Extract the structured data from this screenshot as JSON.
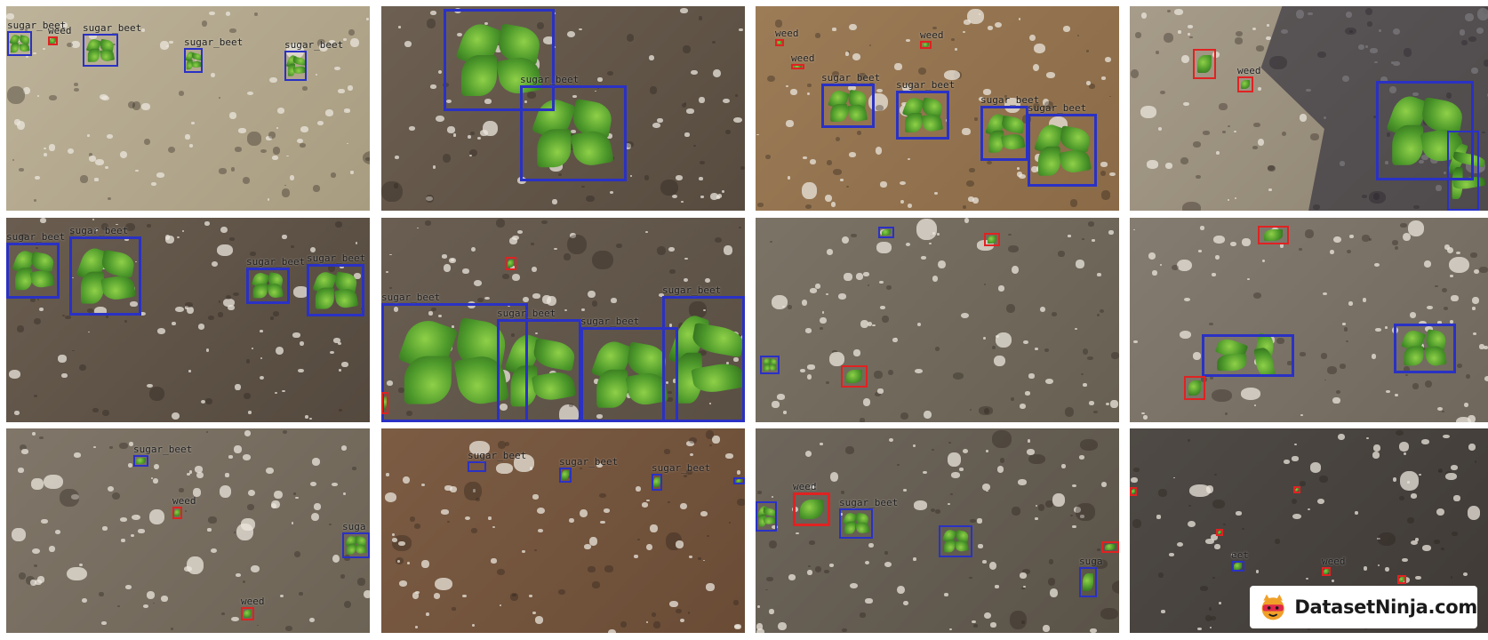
{
  "class_labels": {
    "sugar": "sugar_beet",
    "weed": "weed"
  },
  "colors": {
    "sugar_beet": "#2a31c4",
    "weed": "#e02222"
  },
  "logo": {
    "text": "DatasetNinja.com",
    "icon": "ninja-mascot-icon"
  },
  "tiles": [
    {
      "name": "tile-1",
      "soil": [
        "#bdb39a",
        "#a89c80"
      ],
      "plants": 4,
      "boxes": [
        {
          "cls": "sugar",
          "label": "sugar_beet"
        },
        {
          "cls": "weed",
          "label": "weed"
        },
        {
          "cls": "sugar",
          "label": "sugar_beet"
        },
        {
          "cls": "sugar",
          "label": "sugar_beet"
        },
        {
          "cls": "sugar",
          "label": "sugar_beet"
        }
      ]
    },
    {
      "name": "tile-2",
      "soil": [
        "#6d6052",
        "#574b3f"
      ],
      "plants": 2,
      "boxes": [
        {
          "cls": "sugar",
          "label": ""
        },
        {
          "cls": "sugar",
          "label": "sugar_beet"
        }
      ]
    },
    {
      "name": "tile-3",
      "soil": [
        "#9c7c57",
        "#8a6a47"
      ],
      "plants": 4,
      "boxes": [
        {
          "cls": "weed",
          "label": "weed"
        },
        {
          "cls": "weed",
          "label": "weed"
        },
        {
          "cls": "weed",
          "label": "weed"
        },
        {
          "cls": "sugar",
          "label": "sugar_beet"
        },
        {
          "cls": "sugar",
          "label": "sugar_beet"
        },
        {
          "cls": "sugar",
          "label": "sugar_beet"
        },
        {
          "cls": "sugar",
          "label": "sugar_beet"
        }
      ]
    },
    {
      "name": "tile-4",
      "soil": [
        "#a79c8a",
        "#8c8270"
      ],
      "plants": 2,
      "boxes": [
        {
          "cls": "weed",
          "label": ""
        },
        {
          "cls": "weed",
          "label": "weed"
        },
        {
          "cls": "sugar",
          "label": ""
        },
        {
          "cls": "sugar",
          "label": ""
        }
      ]
    },
    {
      "name": "tile-5",
      "soil": [
        "#6a5d50",
        "#54493e"
      ],
      "plants": 4,
      "boxes": [
        {
          "cls": "sugar",
          "label": "sugar_beet"
        },
        {
          "cls": "sugar",
          "label": "sugar_beet"
        },
        {
          "cls": "sugar",
          "label": "sugar_beet"
        },
        {
          "cls": "sugar",
          "label": "sugar_beet"
        }
      ]
    },
    {
      "name": "tile-6",
      "soil": [
        "#6a5e52",
        "#5a4f43"
      ],
      "plants": 4,
      "boxes": [
        {
          "cls": "weed",
          "label": ""
        },
        {
          "cls": "sugar",
          "label": "sugar_beet"
        },
        {
          "cls": "sugar",
          "label": "sugar_beet"
        },
        {
          "cls": "sugar",
          "label": "sugar_beet"
        },
        {
          "cls": "sugar",
          "label": "sugar_beet"
        },
        {
          "cls": "weed",
          "label": ""
        }
      ]
    },
    {
      "name": "tile-7",
      "soil": [
        "#7b7366",
        "#676052"
      ],
      "plants": 3,
      "boxes": [
        {
          "cls": "sugar",
          "label": ""
        },
        {
          "cls": "weed",
          "label": ""
        },
        {
          "cls": "sugar",
          "label": ""
        },
        {
          "cls": "weed",
          "label": ""
        }
      ]
    },
    {
      "name": "tile-8",
      "soil": [
        "#847c70",
        "#6f675b"
      ],
      "plants": 3,
      "boxes": [
        {
          "cls": "weed",
          "label": ""
        },
        {
          "cls": "sugar",
          "label": ""
        },
        {
          "cls": "sugar",
          "label": ""
        },
        {
          "cls": "weed",
          "label": ""
        }
      ]
    },
    {
      "name": "tile-9",
      "soil": [
        "#807669",
        "#6c6355"
      ],
      "plants": 1,
      "boxes": [
        {
          "cls": "sugar",
          "label": "sugar_beet"
        },
        {
          "cls": "weed",
          "label": "weed"
        },
        {
          "cls": "sugar",
          "label": "suga"
        },
        {
          "cls": "weed",
          "label": "weed"
        }
      ]
    },
    {
      "name": "tile-10",
      "soil": [
        "#7c5c43",
        "#6a4c36"
      ],
      "plants": 0,
      "boxes": [
        {
          "cls": "sugar",
          "label": "sugar_beet"
        },
        {
          "cls": "sugar",
          "label": "sugar_beet"
        },
        {
          "cls": "sugar",
          "label": "sugar_beet"
        },
        {
          "cls": "sugar",
          "label": ""
        }
      ]
    },
    {
      "name": "tile-11",
      "soil": [
        "#6e665b",
        "#5a5348"
      ],
      "plants": 4,
      "boxes": [
        {
          "cls": "sugar",
          "label": ""
        },
        {
          "cls": "weed",
          "label": "weed"
        },
        {
          "cls": "sugar",
          "label": "sugar_beet"
        },
        {
          "cls": "sugar",
          "label": ""
        },
        {
          "cls": "weed",
          "label": ""
        },
        {
          "cls": "sugar",
          "label": "suga"
        }
      ]
    },
    {
      "name": "tile-12",
      "soil": [
        "#4f4a45",
        "#3f3a36"
      ],
      "plants": 0,
      "boxes": [
        {
          "cls": "weed",
          "label": ""
        },
        {
          "cls": "weed",
          "label": ""
        },
        {
          "cls": "weed",
          "label": ""
        },
        {
          "cls": "sugar",
          "label": "eet"
        },
        {
          "cls": "weed",
          "label": "weed"
        },
        {
          "cls": "weed",
          "label": ""
        }
      ]
    }
  ]
}
